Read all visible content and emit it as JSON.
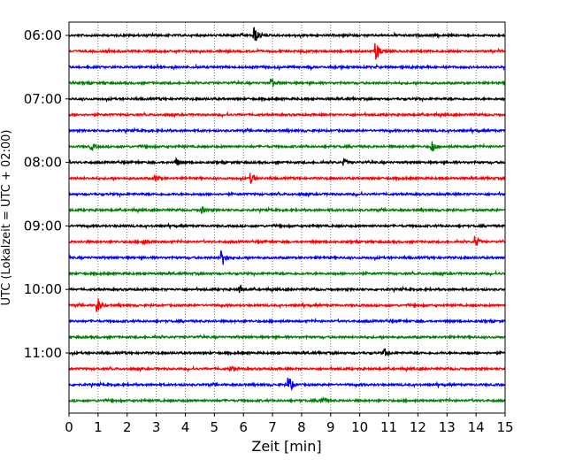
{
  "chart_data": {
    "type": "line",
    "title": "",
    "xlabel": "Zeit  [min]",
    "ylabel": "UTC (Lokalzeit = UTC + 02:00)",
    "xlim": [
      0,
      15
    ],
    "xticks": [
      "0",
      "1",
      "2",
      "3",
      "4",
      "5",
      "6",
      "7",
      "8",
      "9",
      "10",
      "11",
      "12",
      "13",
      "14",
      "15"
    ],
    "ytick_labels": [
      "06:00",
      "07:00",
      "08:00",
      "09:00",
      "10:00",
      "11:00"
    ],
    "grid": "vertical dotted",
    "color_cycle": [
      "#000000",
      "#ff0000",
      "#0000ff",
      "#008000"
    ],
    "trace_interval_min": 15,
    "traces": [
      {
        "start": "06:00",
        "color": "#000000",
        "events": [
          {
            "t": 6.4,
            "amp": 9
          }
        ]
      },
      {
        "start": "06:15",
        "color": "#ff0000",
        "events": [
          {
            "t": 10.6,
            "amp": 9
          }
        ]
      },
      {
        "start": "06:30",
        "color": "#0000ff",
        "events": []
      },
      {
        "start": "06:45",
        "color": "#008000",
        "events": [
          {
            "t": 7.0,
            "amp": 4
          }
        ]
      },
      {
        "start": "07:00",
        "color": "#000000",
        "events": []
      },
      {
        "start": "07:15",
        "color": "#ff0000",
        "events": []
      },
      {
        "start": "07:30",
        "color": "#0000ff",
        "events": []
      },
      {
        "start": "07:45",
        "color": "#008000",
        "events": [
          {
            "t": 12.5,
            "amp": 7
          },
          {
            "t": 0.8,
            "amp": 3
          }
        ]
      },
      {
        "start": "08:00",
        "color": "#000000",
        "events": [
          {
            "t": 3.7,
            "amp": 4
          },
          {
            "t": 9.5,
            "amp": 3
          }
        ]
      },
      {
        "start": "08:15",
        "color": "#ff0000",
        "events": [
          {
            "t": 3.0,
            "amp": 3
          },
          {
            "t": 6.3,
            "amp": 5
          }
        ]
      },
      {
        "start": "08:30",
        "color": "#0000ff",
        "events": []
      },
      {
        "start": "08:45",
        "color": "#008000",
        "events": [
          {
            "t": 4.6,
            "amp": 3
          }
        ]
      },
      {
        "start": "09:00",
        "color": "#000000",
        "events": []
      },
      {
        "start": "09:15",
        "color": "#ff0000",
        "events": [
          {
            "t": 14.0,
            "amp": 6
          },
          {
            "t": 2.6,
            "amp": 4
          }
        ]
      },
      {
        "start": "09:30",
        "color": "#0000ff",
        "events": [
          {
            "t": 5.3,
            "amp": 9
          }
        ]
      },
      {
        "start": "09:45",
        "color": "#008000",
        "events": []
      },
      {
        "start": "10:00",
        "color": "#000000",
        "events": [
          {
            "t": 5.9,
            "amp": 4
          }
        ]
      },
      {
        "start": "10:15",
        "color": "#ff0000",
        "events": [
          {
            "t": 1.0,
            "amp": 8
          }
        ]
      },
      {
        "start": "10:30",
        "color": "#0000ff",
        "events": []
      },
      {
        "start": "10:45",
        "color": "#008000",
        "events": []
      },
      {
        "start": "11:00",
        "color": "#000000",
        "events": [
          {
            "t": 10.9,
            "amp": 4
          }
        ]
      },
      {
        "start": "11:15",
        "color": "#ff0000",
        "events": [
          {
            "t": 5.6,
            "amp": 3
          }
        ]
      },
      {
        "start": "11:30",
        "color": "#0000ff",
        "events": [
          {
            "t": 7.6,
            "amp": 8
          }
        ]
      },
      {
        "start": "11:45",
        "color": "#008000",
        "events": [
          {
            "t": 8.7,
            "amp": 4
          }
        ]
      }
    ]
  }
}
